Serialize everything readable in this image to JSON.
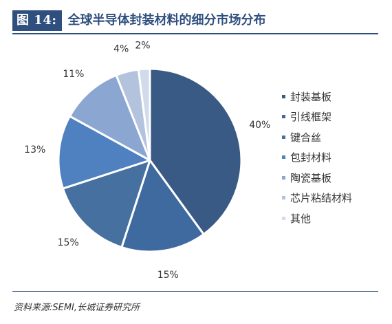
{
  "figure": {
    "label": "图 14:",
    "title": "全球半导体封装材料的细分市场分布"
  },
  "chart_data": {
    "type": "pie",
    "categories": [
      "封装基板",
      "引线框架",
      "键合丝",
      "包封材料",
      "陶瓷基板",
      "芯片粘结材料",
      "其他"
    ],
    "values": [
      40,
      15,
      15,
      13,
      11,
      4,
      2
    ],
    "value_labels": [
      "40%",
      "15%",
      "15%",
      "13%",
      "11%",
      "4%",
      "2%"
    ],
    "colors": [
      "#3a5a86",
      "#3f6aa0",
      "#45709f",
      "#4f80bf",
      "#8aa6d1",
      "#b3c3de",
      "#d1dbeb"
    ],
    "start_angle_deg": 0,
    "direction": "clockwise",
    "legend_position": "right"
  },
  "footer": {
    "source": "资料来源:SEMI,长城证券研究所"
  }
}
